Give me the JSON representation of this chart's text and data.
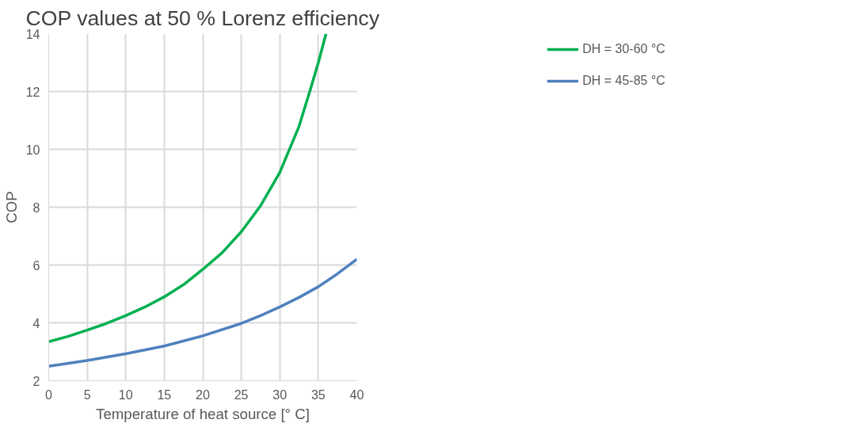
{
  "chart_data": {
    "type": "line",
    "title": "COP values at 50 % Lorenz efficiency",
    "xlabel": "Temperature of heat source [° C]",
    "ylabel": "COP",
    "xlim": [
      0,
      40
    ],
    "xticks": [
      0,
      5,
      10,
      15,
      20,
      25,
      30,
      35,
      40
    ],
    "ylim": [
      2,
      14
    ],
    "yticks": [
      2,
      4,
      6,
      8,
      10,
      12,
      14
    ],
    "grid": true,
    "legend": "right",
    "marker": "none",
    "series": [
      {
        "name": "DH = 30-60 °C",
        "color": "#00b050",
        "x": [
          0,
          2.5,
          5,
          7.5,
          10,
          12.5,
          15,
          17.5,
          20,
          22.5,
          25,
          27.5,
          30,
          32.5,
          34,
          35,
          36
        ],
        "values": [
          3.35,
          3.53,
          3.75,
          3.98,
          4.25,
          4.55,
          4.9,
          5.32,
          5.85,
          6.42,
          7.15,
          8.05,
          9.2,
          10.8,
          12.1,
          13.0,
          14.0
        ]
      },
      {
        "name": "DH = 45-85 °C",
        "color": "#4f81bd",
        "x": [
          0,
          5,
          10,
          15,
          20,
          25,
          27.5,
          30,
          32.5,
          35,
          37.5,
          40
        ],
        "values": [
          2.5,
          2.7,
          2.93,
          3.2,
          3.55,
          3.98,
          4.25,
          4.55,
          4.88,
          5.25,
          5.7,
          6.2
        ]
      }
    ]
  }
}
